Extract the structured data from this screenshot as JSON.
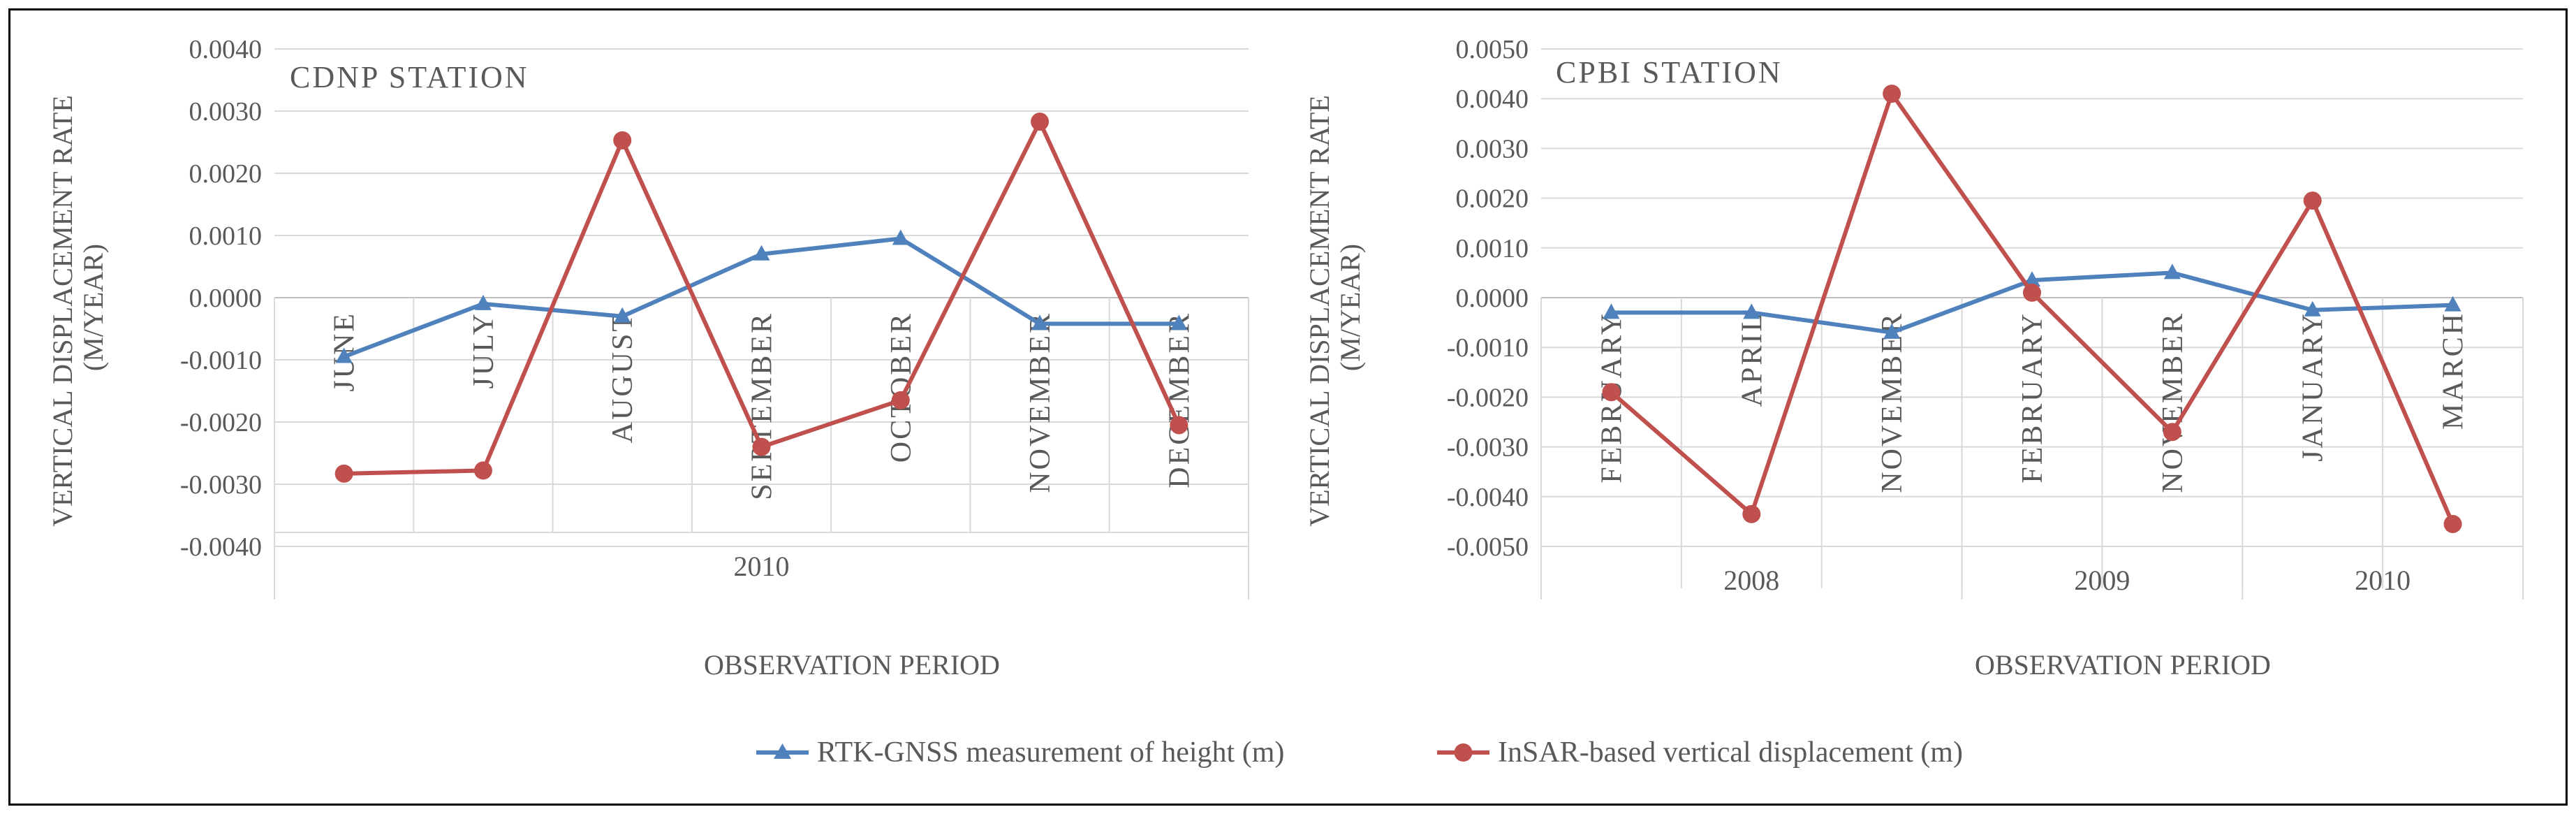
{
  "chart_data": [
    {
      "type": "line",
      "title": "CDNP STATION",
      "xlabel": "OBSERVATION PERIOD",
      "ylabel": "VERTICAL DISPLACEMENT RATE (M/YEAR)",
      "ylim": [
        -0.004,
        0.004
      ],
      "yticks": [
        -0.004,
        -0.003,
        -0.002,
        -0.001,
        0.0,
        0.001,
        0.002,
        0.003,
        0.004
      ],
      "ytick_labels": [
        "-0.0040",
        "-0.0030",
        "-0.0020",
        "-0.0010",
        "0.0000",
        "0.0010",
        "0.0020",
        "0.0030",
        "0.0040"
      ],
      "categories": [
        "JUNE",
        "JULY",
        "AUGUST",
        "SEPTEMBER",
        "OCTOBER",
        "NOVEMBER",
        "DECEMBER"
      ],
      "groups": [
        {
          "label": "2010",
          "count": 7
        }
      ],
      "grid": true,
      "series": [
        {
          "name": "RTK-GNSS measurement of height (m)",
          "color": "#4f81bd",
          "marker": "triangle",
          "values": [
            -0.00095,
            -0.0001,
            -0.0003,
            0.0007,
            0.00095,
            -0.00042,
            -0.00042
          ]
        },
        {
          "name": "InSAR-based vertical displacement (m)",
          "color": "#c0504d",
          "marker": "circle",
          "values": [
            -0.00283,
            -0.00278,
            0.00253,
            -0.0024,
            -0.00165,
            0.00283,
            -0.00205
          ]
        }
      ]
    },
    {
      "type": "line",
      "title": "CPBI STATION",
      "xlabel": "OBSERVATION PERIOD",
      "ylabel": "VERTICAL DISPLACEMENT RATE (M/YEAR)",
      "ylim": [
        -0.005,
        0.005
      ],
      "yticks": [
        -0.005,
        -0.004,
        -0.003,
        -0.002,
        -0.001,
        0.0,
        0.001,
        0.002,
        0.003,
        0.004,
        0.005
      ],
      "ytick_labels": [
        "-0.0050",
        "-0.0040",
        "-0.0030",
        "-0.0020",
        "-0.0010",
        "0.0000",
        "0.0010",
        "0.0020",
        "0.0030",
        "0.0040",
        "0.0050"
      ],
      "categories": [
        "FEBRUARY",
        "APRIL",
        "NOVEMBER",
        "FEBRUARY",
        "NOVEMBER",
        "JANUARY",
        "MARCH"
      ],
      "groups": [
        {
          "label": "2008",
          "count": 3
        },
        {
          "label": "2009",
          "count": 2
        },
        {
          "label": "2010",
          "count": 2
        }
      ],
      "grid": true,
      "series": [
        {
          "name": "RTK-GNSS measurement of height (m)",
          "color": "#4f81bd",
          "marker": "triangle",
          "values": [
            -0.0003,
            -0.0003,
            -0.0007,
            0.00035,
            0.0005,
            -0.00025,
            -0.00015
          ]
        },
        {
          "name": "InSAR-based vertical displacement (m)",
          "color": "#c0504d",
          "marker": "circle",
          "values": [
            -0.0019,
            -0.00435,
            0.0041,
            0.0001,
            -0.0027,
            0.00195,
            -0.00455
          ]
        }
      ]
    }
  ],
  "legend": {
    "position": "bottom",
    "items": [
      {
        "label": "RTK-GNSS measurement of height (m)",
        "color": "#4f81bd",
        "marker": "triangle"
      },
      {
        "label": "InSAR-based vertical displacement (m)",
        "color": "#c0504d",
        "marker": "circle"
      }
    ]
  }
}
